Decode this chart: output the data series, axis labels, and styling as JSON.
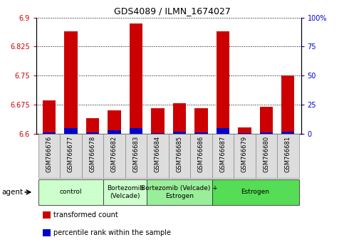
{
  "title": "GDS4089 / ILMN_1674027",
  "samples": [
    "GSM766676",
    "GSM766677",
    "GSM766678",
    "GSM766682",
    "GSM766683",
    "GSM766684",
    "GSM766685",
    "GSM766686",
    "GSM766687",
    "GSM766679",
    "GSM766680",
    "GSM766681"
  ],
  "red_values": [
    6.685,
    6.865,
    6.64,
    6.66,
    6.885,
    6.665,
    6.678,
    6.665,
    6.865,
    6.615,
    6.67,
    6.75
  ],
  "blue_values": [
    8,
    40,
    10,
    25,
    38,
    5,
    12,
    7,
    38,
    2,
    8,
    15
  ],
  "groups": [
    {
      "label": "control",
      "start": 0,
      "end": 3,
      "color": "#ccffcc"
    },
    {
      "label": "Bortezomib\n(Velcade)",
      "start": 3,
      "end": 5,
      "color": "#ccffcc"
    },
    {
      "label": "Bortezomib (Velcade) +\nEstrogen",
      "start": 5,
      "end": 8,
      "color": "#99ee99"
    },
    {
      "label": "Estrogen",
      "start": 8,
      "end": 12,
      "color": "#55dd55"
    }
  ],
  "ylim_left": [
    6.6,
    6.9
  ],
  "ylim_right": [
    0,
    100
  ],
  "yticks_left": [
    6.6,
    6.675,
    6.75,
    6.825,
    6.9
  ],
  "yticks_right": [
    0,
    25,
    50,
    75,
    100
  ],
  "ytick_labels_left": [
    "6.6",
    "6.675",
    "6.75",
    "6.825",
    "6.9"
  ],
  "ytick_labels_right": [
    "0",
    "25",
    "50",
    "75",
    "100%"
  ],
  "bar_width": 0.6,
  "background_color": "#ffffff",
  "legend_items": [
    {
      "label": "transformed count",
      "color": "#cc0000"
    },
    {
      "label": "percentile rank within the sample",
      "color": "#0000cc"
    }
  ],
  "ylabel_right_color": "#0000cc",
  "ylabel_left_color": "#cc0000",
  "blue_scale": 0.12
}
